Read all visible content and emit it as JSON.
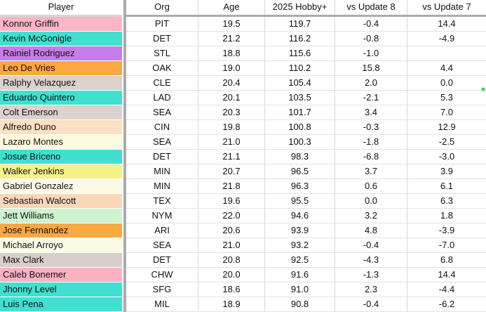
{
  "sheet": {
    "headers": {
      "player": "Player",
      "org": "Org",
      "age": "Age",
      "hobby": "2025 Hobby+",
      "vs8": "vs Update 8",
      "vs7": "vs Update 7"
    },
    "rows": [
      {
        "player": "Konnor Griffin",
        "org": "PIT",
        "age": "19.5",
        "hobby": "119.7",
        "vs8": "-0.4",
        "vs7": "14.4",
        "color": "#FFB5C5"
      },
      {
        "player": "Kevin McGonigle",
        "org": "DET",
        "age": "21.2",
        "hobby": "116.2",
        "vs8": "-0.8",
        "vs7": "-4.9",
        "color": "#40E0D0"
      },
      {
        "player": "Rainiel Rodriguez",
        "org": "STL",
        "age": "18.8",
        "hobby": "115.6",
        "vs8": "-1.0",
        "vs7": "",
        "color": "#C77CEB"
      },
      {
        "player": "Leo De Vries",
        "org": "OAK",
        "age": "19.0",
        "hobby": "110.2",
        "vs8": "15.8",
        "vs7": "4.4",
        "color": "#FBA742"
      },
      {
        "player": "Ralphy Velazquez",
        "org": "CLE",
        "age": "20.4",
        "hobby": "105.4",
        "vs8": "2.0",
        "vs7": "0.0",
        "color": "#DBD2CD"
      },
      {
        "player": "Eduardo Quintero",
        "org": "LAD",
        "age": "20.1",
        "hobby": "103.5",
        "vs8": "-2.1",
        "vs7": "5.3",
        "color": "#40E0D0"
      },
      {
        "player": "Colt Emerson",
        "org": "SEA",
        "age": "20.3",
        "hobby": "101.7",
        "vs8": "3.4",
        "vs7": "7.0",
        "color": "#DBD2CD"
      },
      {
        "player": "Alfredo Duno",
        "org": "CIN",
        "age": "19.8",
        "hobby": "100.8",
        "vs8": "-0.3",
        "vs7": "12.9",
        "color": "#FDDFC3"
      },
      {
        "player": "Lazaro Montes",
        "org": "SEA",
        "age": "21.0",
        "hobby": "100.3",
        "vs8": "-1.8",
        "vs7": "-2.5",
        "color": "#FDFBDE"
      },
      {
        "player": "Josue Briceno",
        "org": "DET",
        "age": "21.1",
        "hobby": "98.3",
        "vs8": "-6.8",
        "vs7": "-3.0",
        "color": "#40E0D0"
      },
      {
        "player": "Walker Jenkins",
        "org": "MIN",
        "age": "20.7",
        "hobby": "96.5",
        "vs8": "3.7",
        "vs7": "3.9",
        "color": "#F5F387"
      },
      {
        "player": "Gabriel Gonzalez",
        "org": "MIN",
        "age": "21.8",
        "hobby": "96.3",
        "vs8": "0.6",
        "vs7": "6.1",
        "color": "#FCFBE6"
      },
      {
        "player": "Sebastian Walcott",
        "org": "TEX",
        "age": "19.6",
        "hobby": "95.5",
        "vs8": "0.0",
        "vs7": "6.3",
        "color": "#FAD7B8"
      },
      {
        "player": "Jett Williams",
        "org": "NYM",
        "age": "22.0",
        "hobby": "94.6",
        "vs8": "3.2",
        "vs7": "1.8",
        "color": "#CFF2D0"
      },
      {
        "player": "Jose Fernandez",
        "org": "ARI",
        "age": "20.6",
        "hobby": "93.9",
        "vs8": "4.8",
        "vs7": "-3.9",
        "color": "#FBA742"
      },
      {
        "player": "Michael Arroyo",
        "org": "SEA",
        "age": "21.0",
        "hobby": "93.2",
        "vs8": "-0.4",
        "vs7": "-7.0",
        "color": "#FCFBE6"
      },
      {
        "player": "Max Clark",
        "org": "DET",
        "age": "20.8",
        "hobby": "92.5",
        "vs8": "-4.3",
        "vs7": "6.8",
        "color": "#D9CFC9"
      },
      {
        "player": "Caleb Bonemer",
        "org": "CHW",
        "age": "20.0",
        "hobby": "91.6",
        "vs8": "-1.3",
        "vs7": "14.4",
        "color": "#FCB0C3"
      },
      {
        "player": "Jhonny Level",
        "org": "SFG",
        "age": "18.6",
        "hobby": "91.0",
        "vs8": "2.3",
        "vs7": "-4.4",
        "color": "#40E0D0"
      },
      {
        "player": "Luis Pena",
        "org": "MIL",
        "age": "18.9",
        "hobby": "90.8",
        "vs8": "-0.4",
        "vs7": "-6.2",
        "color": "#40E0D0"
      }
    ],
    "indicator": {
      "color": "#4CC455"
    },
    "colors": {
      "gridline": "#E2E2E2",
      "column_gridline": "#D9D9D9",
      "freeze_divider": "#ABABAB",
      "text": "#111111",
      "background": "#FFFFFF"
    }
  }
}
